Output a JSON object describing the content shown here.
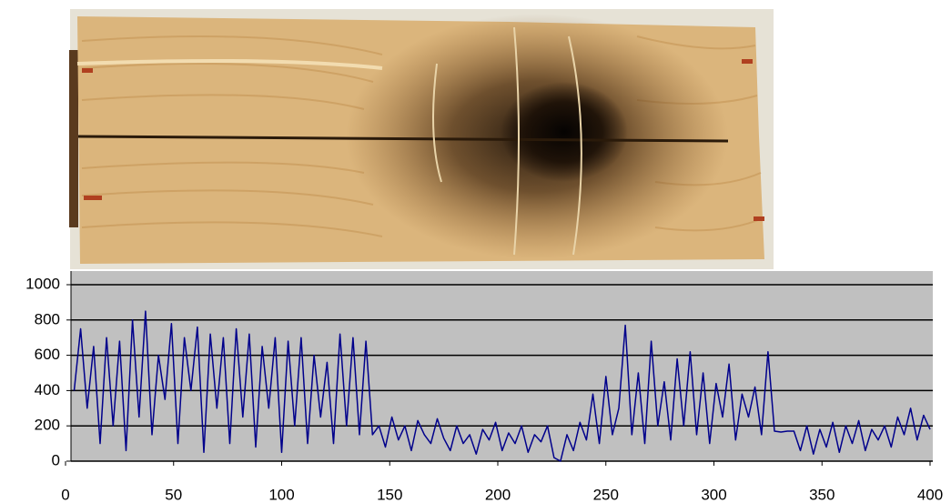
{
  "chart_data": {
    "type": "line",
    "x": [
      4,
      7,
      10,
      13,
      16,
      19,
      22,
      25,
      28,
      31,
      34,
      37,
      40,
      43,
      46,
      49,
      52,
      55,
      58,
      61,
      64,
      67,
      70,
      73,
      76,
      79,
      82,
      85,
      88,
      91,
      94,
      97,
      100,
      103,
      106,
      109,
      112,
      115,
      118,
      121,
      124,
      127,
      130,
      133,
      136,
      139,
      142,
      145,
      148,
      151,
      154,
      157,
      160,
      163,
      166,
      169,
      172,
      175,
      178,
      181,
      184,
      187,
      190,
      193,
      196,
      199,
      202,
      205,
      208,
      211,
      214,
      217,
      220,
      223,
      226,
      229,
      232,
      235,
      238,
      241,
      244,
      247,
      250,
      253,
      256,
      259,
      262,
      265,
      268,
      271,
      274,
      277,
      280,
      283,
      286,
      289,
      292,
      295,
      298,
      301,
      304,
      307,
      310,
      313,
      316,
      319,
      322,
      325,
      328,
      331,
      334,
      337,
      340,
      343,
      346,
      349,
      352,
      355,
      358,
      361,
      364,
      367,
      370,
      373,
      376,
      379,
      382,
      385,
      388,
      391,
      394,
      397,
      400
    ],
    "series": [
      {
        "color": "#00008b",
        "values": [
          400,
          750,
          300,
          650,
          100,
          700,
          200,
          680,
          60,
          800,
          250,
          850,
          150,
          600,
          350,
          780,
          100,
          700,
          400,
          760,
          50,
          720,
          300,
          700,
          100,
          750,
          250,
          720,
          80,
          650,
          300,
          700,
          50,
          680,
          200,
          700,
          100,
          600,
          250,
          560,
          100,
          720,
          200,
          700,
          150,
          680,
          150,
          200,
          80,
          250,
          120,
          200,
          60,
          230,
          150,
          100,
          240,
          130,
          60,
          200,
          100,
          150,
          40,
          180,
          120,
          220,
          60,
          160,
          100,
          200,
          50,
          150,
          110,
          200,
          20,
          0,
          150,
          60,
          220,
          120,
          380,
          100,
          480,
          150,
          300,
          770,
          150,
          500,
          100,
          680,
          200,
          450,
          120,
          580,
          200,
          620,
          150,
          500,
          100,
          440,
          250,
          550,
          120,
          380,
          250,
          420,
          150,
          620,
          170,
          165,
          170,
          170,
          60,
          200,
          40,
          180,
          80,
          220,
          50,
          200,
          100,
          230,
          60,
          180,
          120,
          200,
          80,
          250,
          150,
          300,
          120,
          260,
          180
        ]
      }
    ],
    "xlim": [
      0,
      400
    ],
    "ylim": [
      0,
      1000
    ],
    "xticks": [
      0,
      50,
      100,
      150,
      200,
      250,
      300,
      350,
      400
    ],
    "yticks": [
      0,
      200,
      400,
      600,
      800,
      1000
    ],
    "grid": true
  }
}
